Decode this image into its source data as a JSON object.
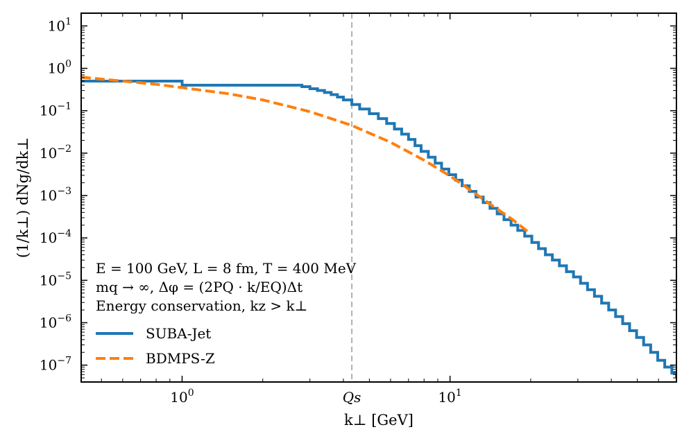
{
  "chart_data": {
    "type": "line",
    "xscale": "log",
    "yscale": "log",
    "xlim": [
      0.42,
      70
    ],
    "ylim": [
      4e-08,
      20
    ],
    "xlabel": "k⊥ [GeV]",
    "ylabel": "(1/k⊥) dNg/dk⊥",
    "x_ticks": [
      {
        "value": 1,
        "base": "10",
        "exp": "0"
      },
      {
        "value": 10,
        "base": "10",
        "exp": "1"
      }
    ],
    "qs_value": 4.3,
    "qs_label": "Qs",
    "y_ticks": [
      {
        "value": 10,
        "base": "10",
        "exp": "1"
      },
      {
        "value": 1,
        "base": "10",
        "exp": "0"
      },
      {
        "value": 0.1,
        "base": "10",
        "exp": "−1"
      },
      {
        "value": 0.01,
        "base": "10",
        "exp": "−2"
      },
      {
        "value": 0.001,
        "base": "10",
        "exp": "−3"
      },
      {
        "value": 0.0001,
        "base": "10",
        "exp": "−4"
      },
      {
        "value": 1e-05,
        "base": "10",
        "exp": "−5"
      },
      {
        "value": 1e-06,
        "base": "10",
        "exp": "−6"
      },
      {
        "value": 1e-07,
        "base": "10",
        "exp": "−7"
      }
    ],
    "annotations": [
      "E = 100 GeV,   L = 8 fm,   T = 400 MeV",
      "mq → ∞,   Δφ = (2PQ · k/EQ)Δt",
      "Energy conservation,   kz > k⊥"
    ],
    "series": [
      {
        "name": "SUBA-Jet",
        "color": "#1f77b4",
        "style": "steps",
        "x": [
          0.42,
          1.0,
          2.0,
          2.8,
          3.0,
          3.2,
          3.4,
          3.6,
          3.8,
          4.0,
          4.3,
          4.6,
          5.0,
          5.4,
          5.8,
          6.2,
          6.6,
          7.0,
          7.4,
          7.8,
          8.3,
          8.8,
          9.3,
          9.9,
          10.5,
          11.1,
          11.8,
          12.5,
          13.3,
          14.1,
          15.0,
          15.9,
          16.9,
          17.9,
          19.0,
          20.2,
          21.4,
          22.7,
          24.1,
          25.6,
          27.2,
          28.9,
          30.7,
          32.6,
          34.6,
          36.8,
          39.1,
          41.5,
          44.1,
          46.8,
          49.7,
          52.8,
          56.1,
          59.6,
          63.3,
          67.3,
          70
        ],
        "y": [
          0.5,
          0.4,
          0.4,
          0.37,
          0.33,
          0.3,
          0.27,
          0.24,
          0.21,
          0.18,
          0.14,
          0.11,
          0.085,
          0.065,
          0.05,
          0.037,
          0.028,
          0.021,
          0.015,
          0.011,
          0.008,
          0.0058,
          0.0042,
          0.0031,
          0.0023,
          0.0017,
          0.00125,
          0.00092,
          0.00068,
          0.0005,
          0.00037,
          0.00027,
          0.0002,
          0.00015,
          0.00011,
          7.8e-05,
          5.6e-05,
          4e-05,
          3e-05,
          2.2e-05,
          1.6e-05,
          1.2e-05,
          8.5e-06,
          6e-06,
          4.2e-06,
          2.9e-06,
          2e-06,
          1.4e-06,
          9.5e-07,
          6.5e-07,
          4.5e-07,
          3e-07,
          2e-07,
          1.3e-07,
          9e-08,
          6.5e-08,
          5e-08
        ]
      },
      {
        "name": "BDMPS-Z",
        "color": "#ff7f0e",
        "style": "dashed",
        "x": [
          0.42,
          0.6,
          0.8,
          1.0,
          1.5,
          2.0,
          3.0,
          4.3,
          6.0,
          8.0,
          10.0,
          12.0,
          14.0,
          17.0,
          20.0
        ],
        "y": [
          0.62,
          0.5,
          0.42,
          0.35,
          0.25,
          0.18,
          0.095,
          0.045,
          0.018,
          0.0068,
          0.0029,
          0.0013,
          0.00065,
          0.00028,
          0.000125
        ]
      }
    ]
  }
}
